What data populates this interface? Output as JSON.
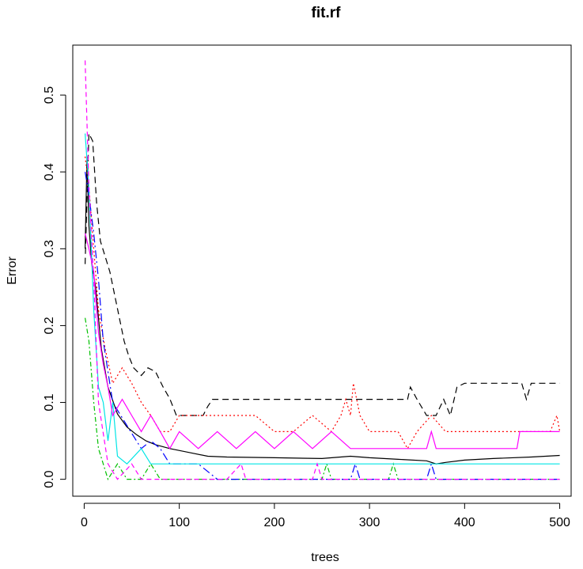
{
  "chart_data": {
    "type": "line",
    "title": "fit.rf",
    "xlabel": "trees",
    "ylabel": "Error",
    "xlim": [
      -12,
      512
    ],
    "ylim": [
      -0.022,
      0.565
    ],
    "xticks": [
      0,
      100,
      200,
      300,
      400,
      500
    ],
    "yticks": [
      0.0,
      0.1,
      0.2,
      0.3,
      0.4,
      0.5
    ],
    "xtick_labels": [
      "0",
      "100",
      "200",
      "300",
      "400",
      "500"
    ],
    "ytick_labels": [
      "0.0",
      "0.1",
      "0.2",
      "0.3",
      "0.4",
      "0.5"
    ],
    "grid": false,
    "legend": "none",
    "series": [
      {
        "color": "#000000",
        "dash": "",
        "points": [
          [
            1,
            0.3
          ],
          [
            3,
            0.42
          ],
          [
            5,
            0.33
          ],
          [
            8,
            0.28
          ],
          [
            12,
            0.25
          ],
          [
            18,
            0.17
          ],
          [
            25,
            0.12
          ],
          [
            35,
            0.085
          ],
          [
            45,
            0.068
          ],
          [
            55,
            0.058
          ],
          [
            65,
            0.05
          ],
          [
            75,
            0.045
          ],
          [
            90,
            0.04
          ],
          [
            110,
            0.035
          ],
          [
            130,
            0.03
          ],
          [
            150,
            0.029
          ],
          [
            200,
            0.028
          ],
          [
            250,
            0.027
          ],
          [
            280,
            0.03
          ],
          [
            300,
            0.028
          ],
          [
            330,
            0.026
          ],
          [
            360,
            0.024
          ],
          [
            370,
            0.02
          ],
          [
            380,
            0.022
          ],
          [
            400,
            0.025
          ],
          [
            430,
            0.027
          ],
          [
            470,
            0.029
          ],
          [
            500,
            0.031
          ]
        ]
      },
      {
        "color": "#000000",
        "dash": "8,5",
        "points": [
          [
            1,
            0.28
          ],
          [
            5,
            0.45
          ],
          [
            9,
            0.44
          ],
          [
            13,
            0.36
          ],
          [
            17,
            0.31
          ],
          [
            22,
            0.29
          ],
          [
            27,
            0.27
          ],
          [
            32,
            0.24
          ],
          [
            37,
            0.21
          ],
          [
            42,
            0.18
          ],
          [
            47,
            0.16
          ],
          [
            52,
            0.145
          ],
          [
            60,
            0.135
          ],
          [
            67,
            0.145
          ],
          [
            75,
            0.14
          ],
          [
            83,
            0.12
          ],
          [
            90,
            0.105
          ],
          [
            97,
            0.083
          ],
          [
            110,
            0.083
          ],
          [
            125,
            0.083
          ],
          [
            130,
            0.095
          ],
          [
            135,
            0.104
          ],
          [
            200,
            0.104
          ],
          [
            250,
            0.104
          ],
          [
            300,
            0.104
          ],
          [
            340,
            0.104
          ],
          [
            343,
            0.12
          ],
          [
            350,
            0.104
          ],
          [
            360,
            0.083
          ],
          [
            370,
            0.083
          ],
          [
            378,
            0.104
          ],
          [
            385,
            0.083
          ],
          [
            392,
            0.12
          ],
          [
            400,
            0.125
          ],
          [
            460,
            0.125
          ],
          [
            465,
            0.104
          ],
          [
            470,
            0.125
          ],
          [
            500,
            0.125
          ]
        ]
      },
      {
        "color": "#ff0000",
        "dash": "2,3",
        "points": [
          [
            1,
            0.42
          ],
          [
            5,
            0.38
          ],
          [
            10,
            0.3
          ],
          [
            15,
            0.22
          ],
          [
            22,
            0.17
          ],
          [
            30,
            0.125
          ],
          [
            40,
            0.145
          ],
          [
            50,
            0.125
          ],
          [
            60,
            0.1
          ],
          [
            70,
            0.083
          ],
          [
            80,
            0.062
          ],
          [
            90,
            0.062
          ],
          [
            100,
            0.083
          ],
          [
            120,
            0.083
          ],
          [
            140,
            0.083
          ],
          [
            160,
            0.083
          ],
          [
            180,
            0.083
          ],
          [
            200,
            0.062
          ],
          [
            220,
            0.062
          ],
          [
            240,
            0.083
          ],
          [
            260,
            0.062
          ],
          [
            270,
            0.083
          ],
          [
            275,
            0.104
          ],
          [
            280,
            0.083
          ],
          [
            283,
            0.125
          ],
          [
            290,
            0.083
          ],
          [
            300,
            0.062
          ],
          [
            330,
            0.062
          ],
          [
            340,
            0.04
          ],
          [
            350,
            0.062
          ],
          [
            365,
            0.083
          ],
          [
            380,
            0.062
          ],
          [
            400,
            0.062
          ],
          [
            420,
            0.062
          ],
          [
            440,
            0.062
          ],
          [
            460,
            0.062
          ],
          [
            490,
            0.062
          ],
          [
            497,
            0.083
          ],
          [
            500,
            0.062
          ]
        ]
      },
      {
        "color": "#00c000",
        "dash": "6,3,2,3",
        "points": [
          [
            1,
            0.21
          ],
          [
            5,
            0.18
          ],
          [
            10,
            0.1
          ],
          [
            15,
            0.04
          ],
          [
            20,
            0.02
          ],
          [
            25,
            0.0
          ],
          [
            35,
            0.02
          ],
          [
            45,
            0.0
          ],
          [
            60,
            0.0
          ],
          [
            70,
            0.02
          ],
          [
            80,
            0.0
          ],
          [
            100,
            0.0
          ],
          [
            150,
            0.0
          ],
          [
            200,
            0.0
          ],
          [
            250,
            0.0
          ],
          [
            255,
            0.02
          ],
          [
            260,
            0.0
          ],
          [
            320,
            0.0
          ],
          [
            325,
            0.02
          ],
          [
            330,
            0.0
          ],
          [
            400,
            0.0
          ],
          [
            450,
            0.0
          ],
          [
            500,
            0.0
          ]
        ]
      },
      {
        "color": "#0000ff",
        "dash": "10,4,2,4",
        "points": [
          [
            1,
            0.4
          ],
          [
            5,
            0.37
          ],
          [
            10,
            0.32
          ],
          [
            15,
            0.26
          ],
          [
            20,
            0.18
          ],
          [
            25,
            0.14
          ],
          [
            30,
            0.1
          ],
          [
            40,
            0.08
          ],
          [
            50,
            0.06
          ],
          [
            60,
            0.04
          ],
          [
            70,
            0.05
          ],
          [
            80,
            0.04
          ],
          [
            90,
            0.02
          ],
          [
            100,
            0.02
          ],
          [
            120,
            0.02
          ],
          [
            140,
            0.0
          ],
          [
            200,
            0.0
          ],
          [
            280,
            0.0
          ],
          [
            285,
            0.02
          ],
          [
            290,
            0.0
          ],
          [
            360,
            0.0
          ],
          [
            365,
            0.02
          ],
          [
            370,
            0.0
          ],
          [
            400,
            0.0
          ],
          [
            500,
            0.0
          ]
        ]
      },
      {
        "color": "#00e5e5",
        "dash": "",
        "points": [
          [
            1,
            0.45
          ],
          [
            5,
            0.38
          ],
          [
            10,
            0.22
          ],
          [
            15,
            0.12
          ],
          [
            20,
            0.1
          ],
          [
            25,
            0.05
          ],
          [
            30,
            0.1
          ],
          [
            35,
            0.03
          ],
          [
            45,
            0.02
          ],
          [
            60,
            0.04
          ],
          [
            70,
            0.02
          ],
          [
            90,
            0.02
          ],
          [
            120,
            0.02
          ],
          [
            200,
            0.02
          ],
          [
            300,
            0.02
          ],
          [
            400,
            0.02
          ],
          [
            500,
            0.02
          ]
        ]
      },
      {
        "color": "#ff00ff",
        "dash": "",
        "points": [
          [
            1,
            0.32
          ],
          [
            5,
            0.3
          ],
          [
            10,
            0.27
          ],
          [
            15,
            0.19
          ],
          [
            20,
            0.15
          ],
          [
            25,
            0.12
          ],
          [
            30,
            0.083
          ],
          [
            40,
            0.104
          ],
          [
            50,
            0.083
          ],
          [
            60,
            0.062
          ],
          [
            70,
            0.083
          ],
          [
            80,
            0.062
          ],
          [
            90,
            0.04
          ],
          [
            100,
            0.062
          ],
          [
            120,
            0.04
          ],
          [
            140,
            0.062
          ],
          [
            160,
            0.04
          ],
          [
            180,
            0.062
          ],
          [
            200,
            0.04
          ],
          [
            220,
            0.062
          ],
          [
            240,
            0.04
          ],
          [
            260,
            0.062
          ],
          [
            280,
            0.04
          ],
          [
            300,
            0.04
          ],
          [
            360,
            0.04
          ],
          [
            365,
            0.062
          ],
          [
            370,
            0.04
          ],
          [
            400,
            0.04
          ],
          [
            455,
            0.04
          ],
          [
            458,
            0.062
          ],
          [
            500,
            0.062
          ]
        ]
      },
      {
        "color": "#ff00ff",
        "dash": "6,4",
        "points": [
          [
            1,
            0.545
          ],
          [
            5,
            0.38
          ],
          [
            10,
            0.26
          ],
          [
            15,
            0.1
          ],
          [
            20,
            0.06
          ],
          [
            25,
            0.02
          ],
          [
            35,
            0.0
          ],
          [
            50,
            0.02
          ],
          [
            60,
            0.0
          ],
          [
            100,
            0.0
          ],
          [
            150,
            0.0
          ],
          [
            165,
            0.02
          ],
          [
            170,
            0.0
          ],
          [
            200,
            0.0
          ],
          [
            240,
            0.0
          ],
          [
            245,
            0.02
          ],
          [
            250,
            0.0
          ],
          [
            300,
            0.0
          ],
          [
            400,
            0.0
          ],
          [
            500,
            0.0
          ]
        ]
      }
    ]
  }
}
